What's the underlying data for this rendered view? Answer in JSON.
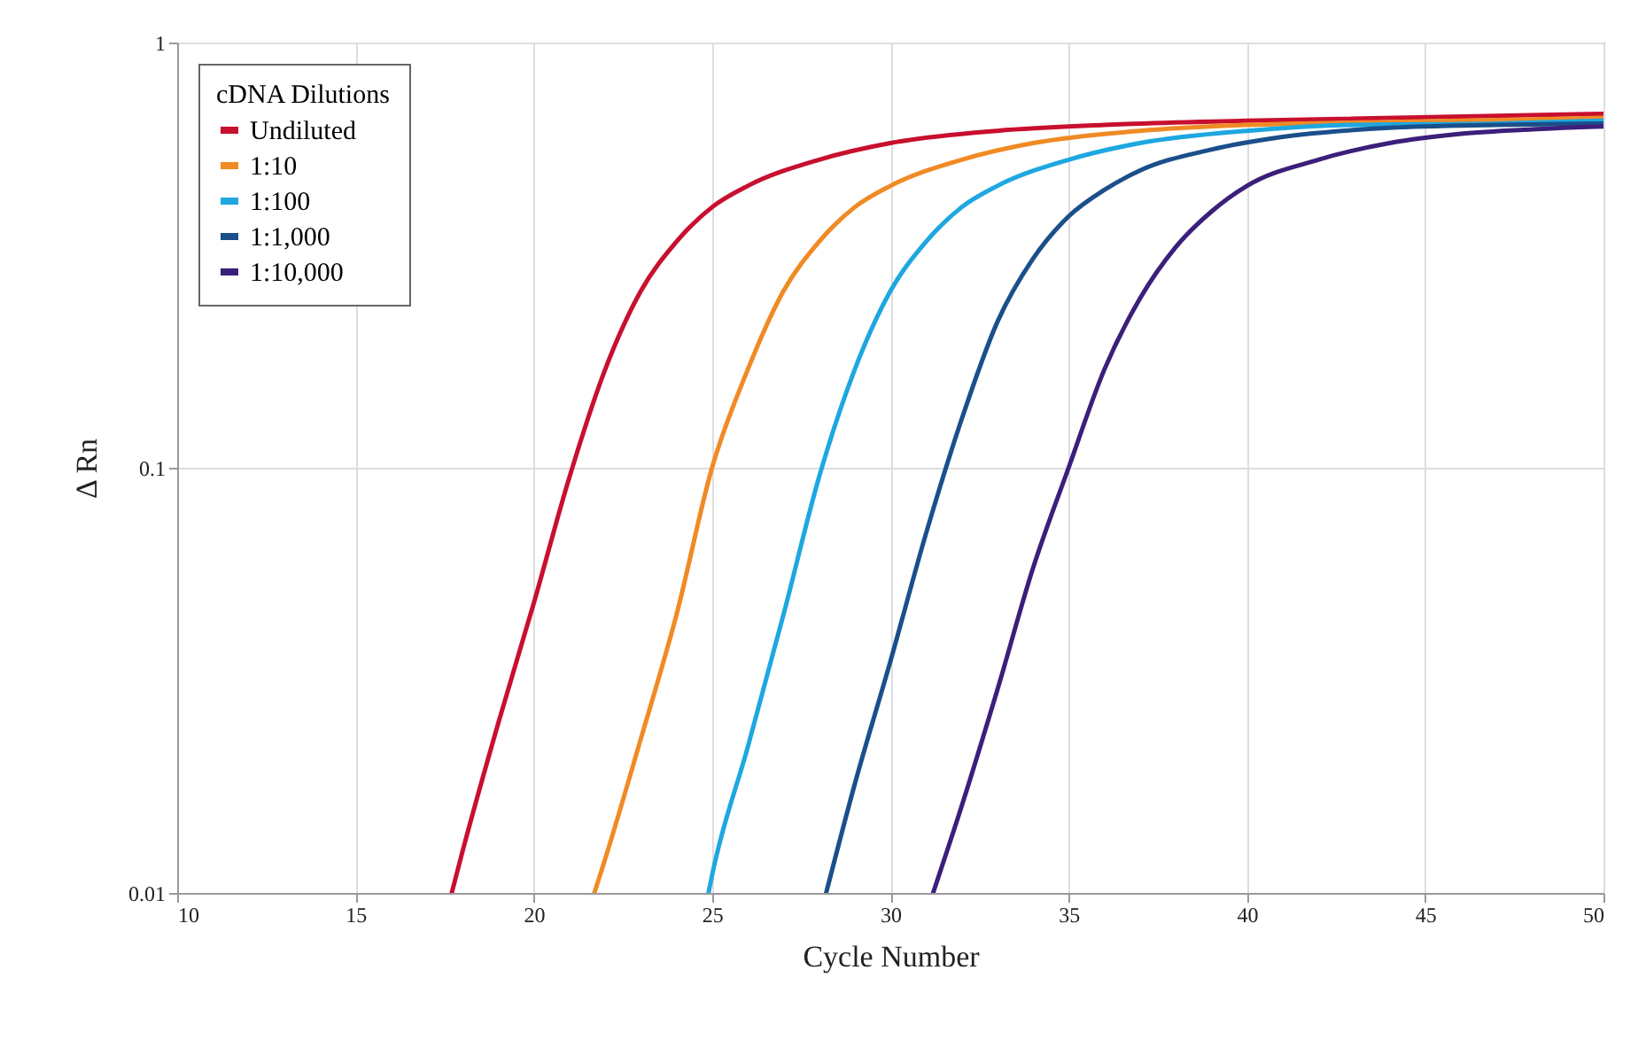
{
  "chart_data": {
    "type": "line",
    "xlabel": "Cycle Number",
    "ylabel": "Δ Rn",
    "legend_title": "cDNA Dilutions",
    "legend": "top left",
    "grid": true,
    "log": "y",
    "marker": "none",
    "line_style": "solid",
    "xlim": [
      10,
      50
    ],
    "xticks": [
      10,
      15,
      20,
      25,
      30,
      35,
      40,
      45,
      50
    ],
    "ylim": [
      0.01,
      1
    ],
    "yticks": [
      0.01,
      0.1,
      1
    ],
    "series": [
      {
        "name": "Undiluted",
        "color": "#c8102e",
        "x": [
          17.7,
          18,
          19,
          20,
          21,
          22,
          23,
          24,
          25,
          26,
          28,
          30,
          33,
          36,
          40,
          50
        ],
        "values": [
          0.01,
          0.0125,
          0.025,
          0.048,
          0.095,
          0.17,
          0.26,
          0.34,
          0.41,
          0.46,
          0.53,
          0.58,
          0.62,
          0.64,
          0.655,
          0.68
        ]
      },
      {
        "name": "1:10",
        "color": "#f08a24",
        "x": [
          21.7,
          22,
          23,
          24,
          25,
          26,
          27,
          28,
          29,
          30,
          32,
          34,
          37,
          40,
          44,
          50
        ],
        "values": [
          0.01,
          0.012,
          0.023,
          0.045,
          0.1,
          0.17,
          0.26,
          0.34,
          0.41,
          0.46,
          0.53,
          0.58,
          0.62,
          0.64,
          0.65,
          0.665
        ]
      },
      {
        "name": "1:100",
        "color": "#1ea7e0",
        "x": [
          24.9,
          25,
          26,
          27,
          28,
          29,
          30,
          31,
          32,
          33,
          35,
          37,
          40,
          43,
          47,
          50
        ],
        "values": [
          0.01,
          0.011,
          0.022,
          0.045,
          0.095,
          0.17,
          0.26,
          0.34,
          0.41,
          0.46,
          0.53,
          0.58,
          0.62,
          0.64,
          0.645,
          0.655
        ]
      },
      {
        "name": "1:1,000",
        "color": "#1a4f8a",
        "x": [
          28.2,
          29,
          30,
          31,
          32,
          33,
          34,
          35,
          36,
          37,
          39,
          41,
          44,
          47,
          50
        ],
        "values": [
          0.01,
          0.018,
          0.035,
          0.07,
          0.13,
          0.22,
          0.31,
          0.39,
          0.45,
          0.5,
          0.56,
          0.6,
          0.63,
          0.64,
          0.645
        ]
      },
      {
        "name": "1:10,000",
        "color": "#3b1f7a",
        "x": [
          31.2,
          32,
          33,
          34,
          35,
          36,
          37,
          38,
          39,
          40,
          42,
          44,
          46,
          48,
          50
        ],
        "values": [
          0.01,
          0.016,
          0.03,
          0.058,
          0.1,
          0.17,
          0.25,
          0.33,
          0.4,
          0.46,
          0.53,
          0.58,
          0.61,
          0.625,
          0.635
        ]
      }
    ]
  }
}
